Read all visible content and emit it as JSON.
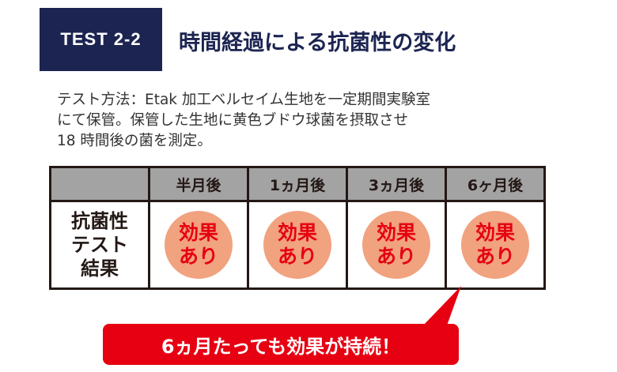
{
  "badge": "TEST  2-2",
  "title": "時間経過による抗菌性の変化",
  "description": [
    "テスト方法：Etak 加工ベルセイム生地を一定期間実験室",
    "にて保管。保管した生地に黄色ブドウ球菌を摂取させ",
    "18 時間後の菌を測定。"
  ],
  "table": {
    "headers": [
      "",
      "半月後",
      "1ヵ月後",
      "3ヵ月後",
      "6ヶ月後"
    ],
    "row_label": [
      "抗菌性",
      "テスト",
      "結果"
    ],
    "results": [
      [
        "効果",
        "あり"
      ],
      [
        "効果",
        "あり"
      ],
      [
        "効果",
        "あり"
      ],
      [
        "効果",
        "あり"
      ]
    ]
  },
  "callout": "6ヵ月たっても効果が持続！",
  "colors": {
    "navy": "#1c2551",
    "red": "#e60012",
    "stamp": "#f1a27f"
  }
}
